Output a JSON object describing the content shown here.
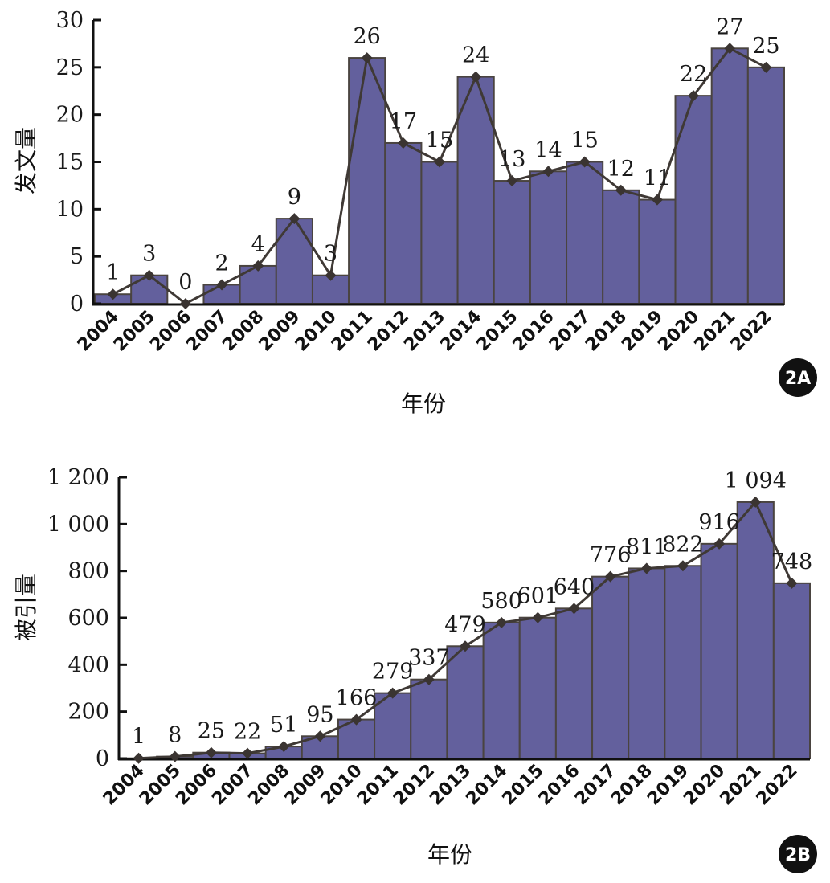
{
  "chart_data": [
    {
      "id": "2A",
      "type": "bar",
      "overlay": "line",
      "title": "",
      "xlabel": "年份",
      "ylabel": "发文量",
      "ylim": [
        0,
        30
      ],
      "yticks": [
        0,
        5,
        10,
        15,
        20,
        25,
        30
      ],
      "ytick_labels": [
        "0",
        "5",
        "10",
        "15",
        "20",
        "25",
        "30"
      ],
      "categories": [
        "2004",
        "2005",
        "2006",
        "2007",
        "2008",
        "2009",
        "2010",
        "2011",
        "2012",
        "2013",
        "2014",
        "2015",
        "2016",
        "2017",
        "2018",
        "2019",
        "2020",
        "2021",
        "2022"
      ],
      "values": [
        1,
        3,
        0,
        2,
        4,
        9,
        3,
        26,
        17,
        15,
        24,
        13,
        14,
        15,
        12,
        11,
        22,
        27,
        25
      ],
      "data_labels": [
        "1",
        "3",
        "0",
        "2",
        "4",
        "9",
        "3",
        "26",
        "17",
        "15",
        "24",
        "13",
        "14",
        "15",
        "12",
        "11",
        "22",
        "27",
        "25"
      ],
      "grid": false,
      "badge": "2A"
    },
    {
      "id": "2B",
      "type": "bar",
      "overlay": "line",
      "title": "",
      "xlabel": "年份",
      "ylabel": "被引量",
      "ylim": [
        0,
        1200
      ],
      "yticks": [
        0,
        200,
        400,
        600,
        800,
        1000,
        1200
      ],
      "ytick_labels": [
        "0",
        "200",
        "400",
        "600",
        "800",
        "1 000",
        "1 200"
      ],
      "categories": [
        "2004",
        "2005",
        "2006",
        "2007",
        "2008",
        "2009",
        "2010",
        "2011",
        "2012",
        "2013",
        "2014",
        "2015",
        "2016",
        "2017",
        "2018",
        "2019",
        "2020",
        "2021",
        "2022"
      ],
      "values": [
        1,
        8,
        25,
        22,
        51,
        95,
        166,
        279,
        337,
        479,
        580,
        601,
        640,
        776,
        811,
        822,
        916,
        1094,
        748
      ],
      "data_labels": [
        "1",
        "8",
        "25",
        "22",
        "51",
        "95",
        "166",
        "279",
        "337",
        "479",
        "580",
        "601",
        "640",
        "776",
        "811",
        "822",
        "916",
        "1 094",
        "748"
      ],
      "grid": false,
      "badge": "2B"
    }
  ],
  "colors": {
    "bar_fill": "#63609d",
    "bar_stroke": "#4a4440",
    "line": "#3f3935",
    "marker": "#3a3431",
    "axis": "#111111",
    "badge_bg": "#111111"
  }
}
